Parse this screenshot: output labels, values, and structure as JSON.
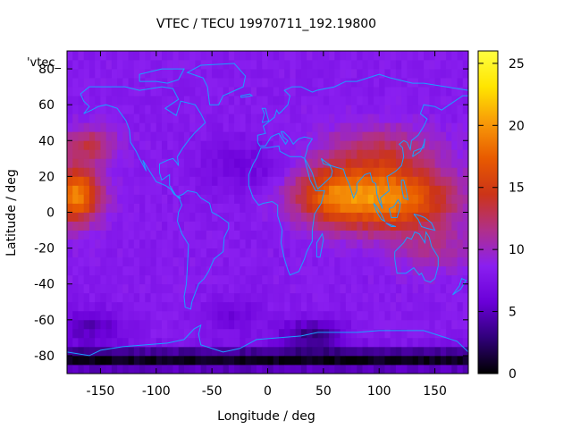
{
  "chart_data": {
    "type": "heatmap",
    "title": "VTEC / TECU 19970711_192.19800",
    "xlabel": "Longitude / deg",
    "ylabel": "Latitude / deg",
    "key_label": "'vtec_",
    "xlim": [
      -180,
      180
    ],
    "ylim": [
      -90,
      90
    ],
    "x_ticks": [
      -150,
      -100,
      -50,
      0,
      50,
      100,
      150
    ],
    "y_ticks": [
      -80,
      -60,
      -40,
      -20,
      0,
      20,
      40,
      60,
      80
    ],
    "colorbar": {
      "range": [
        0,
        26
      ],
      "ticks": [
        0,
        5,
        10,
        15,
        20,
        25
      ]
    },
    "colormap": [
      "#000000",
      "#30007a",
      "#6a00d8",
      "#8a1ff0",
      "#b0308a",
      "#cc3418",
      "#e85a00",
      "#f89a08",
      "#ffe500",
      "#ffff40"
    ],
    "coastline_color": "#1aa0ff",
    "grid_step_deg": 5,
    "blobs": [
      {
        "lon": 110,
        "lat": 8,
        "dlon": 55,
        "dlat": 18,
        "amp": 11.0
      },
      {
        "lon": 55,
        "lat": 10,
        "dlon": 35,
        "dlat": 16,
        "amp": 6.5
      },
      {
        "lon": 100,
        "lat": 35,
        "dlon": 50,
        "dlat": 14,
        "amp": 4.0
      },
      {
        "lon": -172,
        "lat": 10,
        "dlon": 22,
        "dlat": 16,
        "amp": 11.0
      },
      {
        "lon": -160,
        "lat": 38,
        "dlon": 25,
        "dlat": 10,
        "amp": 4.5
      },
      {
        "lon": 150,
        "lat": -20,
        "dlon": 35,
        "dlat": 14,
        "amp": 2.5
      }
    ],
    "background_level": 8.2,
    "dark_band": {
      "lat": -82,
      "dlat": 6,
      "depth": 7.5
    },
    "dark_patches": [
      {
        "lon": 40,
        "lat": -68,
        "dlon": 30,
        "dlat": 8,
        "depth": 5.0
      },
      {
        "lon": -160,
        "lat": -64,
        "dlon": 30,
        "dlat": 10,
        "depth": 3.5
      },
      {
        "lon": -30,
        "lat": -58,
        "dlon": 25,
        "dlat": 10,
        "depth": 2.0
      },
      {
        "lon": -20,
        "lat": 25,
        "dlon": 40,
        "dlat": 15,
        "depth": 2.0
      }
    ]
  }
}
